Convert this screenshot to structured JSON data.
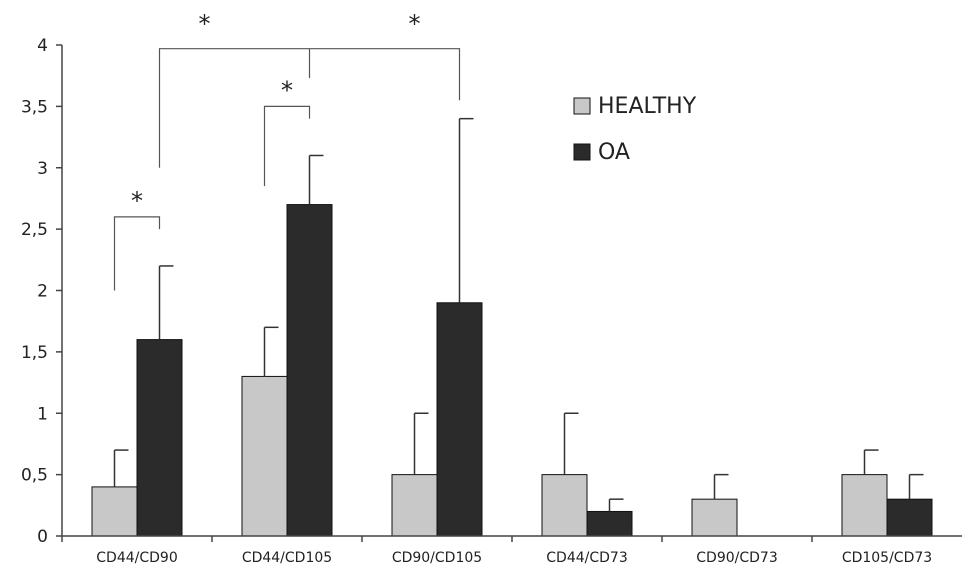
{
  "chart_data": {
    "type": "bar",
    "categories": [
      "CD44/CD90",
      "CD44/CD105",
      "CD90/CD105",
      "CD44/CD73",
      "CD90/CD73",
      "CD105/CD73"
    ],
    "series": [
      {
        "name": "HEALTHY",
        "color": "#c8c8c8",
        "values": [
          0.4,
          1.3,
          0.5,
          0.5,
          0.3,
          0.5
        ],
        "errors": [
          0.3,
          0.4,
          0.5,
          0.5,
          0.2,
          0.2
        ]
      },
      {
        "name": "OA",
        "color": "#2b2b2b",
        "values": [
          1.6,
          2.7,
          1.9,
          0.2,
          0.0,
          0.3
        ],
        "errors": [
          0.6,
          0.4,
          1.5,
          0.1,
          0.0,
          0.2
        ]
      }
    ],
    "ylim": [
      0,
      4
    ],
    "yticks": [
      "0",
      "0,5",
      "1",
      "1,5",
      "2",
      "2,5",
      "3",
      "3,5",
      "4"
    ],
    "legend_position": "top-right",
    "significance": [
      {
        "label": "*",
        "from": "CD44/CD90 HEALTHY",
        "to": "CD44/CD90 OA"
      },
      {
        "label": "*",
        "from": "CD44/CD105 HEALTHY",
        "to": "CD44/CD105 OA"
      },
      {
        "label": "*",
        "from": "CD44/CD90 OA",
        "to": "CD44/CD105 OA"
      },
      {
        "label": "*",
        "from": "CD44/CD105 OA",
        "to": "CD90/CD105 OA"
      }
    ]
  }
}
